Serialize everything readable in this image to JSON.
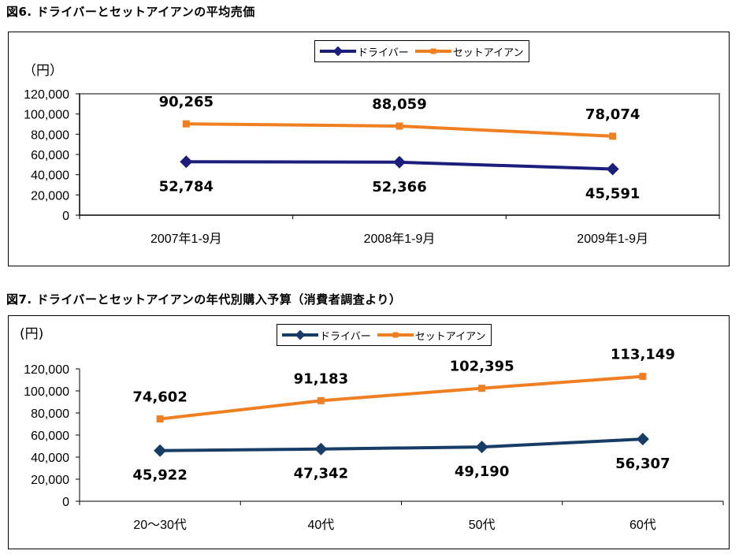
{
  "fig1": {
    "title": "図6. ドライバーとセットアイアンの平均売価",
    "unit": "（円）",
    "chart_data": {
      "type": "line",
      "categories": [
        "2007年1-9月",
        "2008年1-9月",
        "2009年1-9月"
      ],
      "ylim": [
        0,
        120000
      ],
      "yticks": [
        0,
        20000,
        40000,
        60000,
        80000,
        100000,
        120000
      ],
      "ytick_labels": [
        "0",
        "20,000",
        "40,000",
        "60,000",
        "80,000",
        "100,000",
        "120,000"
      ],
      "legend_position": "top",
      "series": [
        {
          "name": "ドライバー",
          "color": "#1b1e7a",
          "marker": "diamond",
          "values": [
            52784,
            52366,
            45591
          ],
          "labels": [
            "52,784",
            "52,366",
            "45,591"
          ],
          "label_pos": "below"
        },
        {
          "name": "セットアイアン",
          "color": "#f07f22",
          "marker": "square",
          "values": [
            90265,
            88059,
            78074
          ],
          "labels": [
            "90,265",
            "88,059",
            "78,074"
          ],
          "label_pos": "above"
        }
      ]
    }
  },
  "fig2": {
    "title": "図7. ドライバーとセットアイアンの年代別購入予算（消費者調査より）",
    "unit": "(円)",
    "chart_data": {
      "type": "line",
      "categories": [
        "20～30代",
        "40代",
        "50代",
        "60代"
      ],
      "ylim": [
        0,
        120000
      ],
      "yticks": [
        0,
        20000,
        40000,
        60000,
        80000,
        100000,
        120000
      ],
      "ytick_labels": [
        "0",
        "20,000",
        "40,000",
        "60,000",
        "80,000",
        "100,000",
        "120,000"
      ],
      "legend_position": "top",
      "series": [
        {
          "name": "ドライバー",
          "color": "#173c66",
          "marker": "diamond",
          "values": [
            45922,
            47342,
            49190,
            56307
          ],
          "labels": [
            "45,922",
            "47,342",
            "49,190",
            "56,307"
          ],
          "label_pos": "below"
        },
        {
          "name": "セットアイアン",
          "color": "#f07f22",
          "marker": "square",
          "values": [
            74602,
            91183,
            102395,
            113149
          ],
          "labels": [
            "74,602",
            "91,183",
            "102,395",
            "113,149"
          ],
          "label_pos": "above"
        }
      ]
    }
  }
}
